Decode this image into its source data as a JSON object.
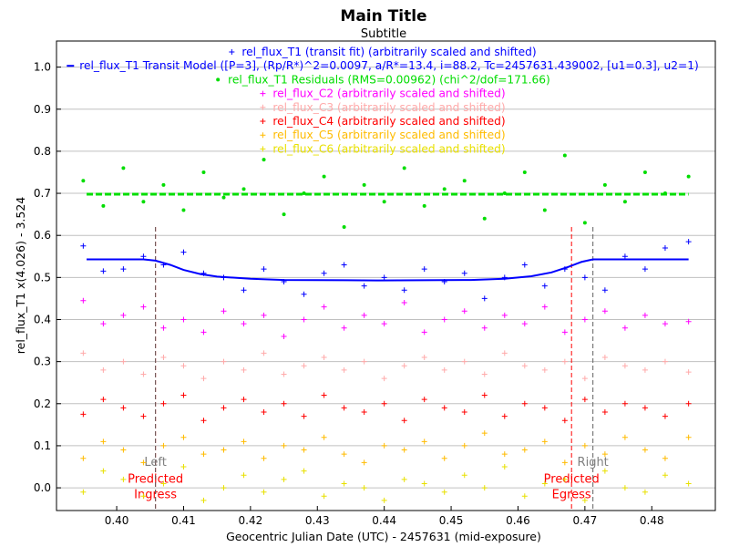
{
  "chart_data": {
    "type": "scatter",
    "title": "Main Title",
    "subtitle": "Subtitle",
    "xlabel": "Geocentric Julian Date (UTC) - 2457631 (mid-exposure)",
    "ylabel": "rel_flux_T1 x(4.026) - 3.524",
    "xlim": [
      0.391,
      0.4895
    ],
    "ylim": [
      -0.054,
      1.062
    ],
    "grid": true,
    "legend_position": "top-center",
    "xticks": [
      "0.40",
      "0.41",
      "0.42",
      "0.43",
      "0.44",
      "0.45",
      "0.46",
      "0.47",
      "0.48"
    ],
    "xtick_values": [
      0.4,
      0.41,
      0.42,
      0.43,
      0.44,
      0.45,
      0.46,
      0.47,
      0.48
    ],
    "yticks": [
      "0.0",
      "0.1",
      "0.2",
      "0.3",
      "0.4",
      "0.5",
      "0.6",
      "0.7",
      "0.8",
      "0.9",
      "1.0"
    ],
    "ytick_values": [
      0.0,
      0.1,
      0.2,
      0.3,
      0.4,
      0.5,
      0.6,
      0.7,
      0.8,
      0.9,
      1.0
    ],
    "x": [
      0.395,
      0.398,
      0.401,
      0.404,
      0.407,
      0.41,
      0.413,
      0.416,
      0.419,
      0.422,
      0.425,
      0.428,
      0.431,
      0.434,
      0.437,
      0.44,
      0.443,
      0.446,
      0.449,
      0.452,
      0.455,
      0.458,
      0.461,
      0.464,
      0.467,
      0.47,
      0.473,
      0.476,
      0.479,
      0.482,
      0.4855
    ],
    "series": [
      {
        "name": "rel_flux_T1 (transit fit) (arbitrarily scaled and shifted)",
        "marker": "+",
        "color": "#0000ff",
        "values": [
          0.575,
          0.515,
          0.52,
          0.55,
          0.53,
          0.56,
          0.51,
          0.5,
          0.47,
          0.52,
          0.49,
          0.46,
          0.51,
          0.53,
          0.48,
          0.5,
          0.47,
          0.52,
          0.49,
          0.51,
          0.45,
          0.5,
          0.53,
          0.48,
          0.52,
          0.5,
          0.47,
          0.55,
          0.52,
          0.57,
          0.585
        ]
      },
      {
        "name": "rel_flux_T1 Residuals (RMS=0.00962) (chi^2/dof=171.66)",
        "marker": "dot",
        "color": "#00dd00",
        "values": [
          0.73,
          0.67,
          0.76,
          0.68,
          0.72,
          0.66,
          0.75,
          0.69,
          0.71,
          0.78,
          0.65,
          0.7,
          0.74,
          0.62,
          0.72,
          0.68,
          0.76,
          0.67,
          0.71,
          0.73,
          0.64,
          0.7,
          0.75,
          0.66,
          0.79,
          0.63,
          0.72,
          0.68,
          0.75,
          0.7,
          0.74
        ]
      },
      {
        "name": "rel_flux_C2 (arbitrarily scaled and shifted)",
        "marker": "+",
        "color": "#ff00ff",
        "values": [
          0.445,
          0.39,
          0.41,
          0.43,
          0.38,
          0.4,
          0.37,
          0.42,
          0.39,
          0.41,
          0.36,
          0.4,
          0.43,
          0.38,
          0.41,
          0.39,
          0.44,
          0.37,
          0.4,
          0.42,
          0.38,
          0.41,
          0.39,
          0.43,
          0.37,
          0.4,
          0.42,
          0.38,
          0.41,
          0.39,
          0.395
        ]
      },
      {
        "name": "rel_flux_C3 (arbitrarily scaled and shifted)",
        "marker": "+",
        "color": "#ffaaaa",
        "values": [
          0.32,
          0.28,
          0.3,
          0.27,
          0.31,
          0.29,
          0.26,
          0.3,
          0.28,
          0.32,
          0.27,
          0.29,
          0.31,
          0.28,
          0.3,
          0.26,
          0.29,
          0.31,
          0.28,
          0.3,
          0.27,
          0.32,
          0.29,
          0.28,
          0.3,
          0.26,
          0.31,
          0.29,
          0.28,
          0.3,
          0.275
        ]
      },
      {
        "name": "rel_flux_C4 (arbitrarily scaled and shifted)",
        "marker": "+",
        "color": "#ff0000",
        "values": [
          0.175,
          0.21,
          0.19,
          0.17,
          0.2,
          0.22,
          0.16,
          0.19,
          0.21,
          0.18,
          0.2,
          0.17,
          0.22,
          0.19,
          0.18,
          0.2,
          0.16,
          0.21,
          0.19,
          0.18,
          0.22,
          0.17,
          0.2,
          0.19,
          0.16,
          0.21,
          0.18,
          0.2,
          0.19,
          0.17,
          0.2
        ]
      },
      {
        "name": "rel_flux_C5 (arbitrarily scaled and shifted)",
        "marker": "+",
        "color": "#ffbb00",
        "values": [
          0.07,
          0.11,
          0.09,
          0.06,
          0.1,
          0.12,
          0.08,
          0.09,
          0.11,
          0.07,
          0.1,
          0.09,
          0.12,
          0.08,
          0.06,
          0.1,
          0.09,
          0.11,
          0.07,
          0.1,
          0.13,
          0.08,
          0.09,
          0.11,
          0.06,
          0.1,
          0.08,
          0.12,
          0.09,
          0.07,
          0.12
        ]
      },
      {
        "name": "rel_flux_C6 (arbitrarily scaled and shifted)",
        "marker": "+",
        "color": "#e8e000",
        "values": [
          -0.01,
          0.04,
          0.02,
          -0.02,
          0.01,
          0.05,
          -0.03,
          0.0,
          0.03,
          -0.01,
          0.02,
          0.04,
          -0.02,
          0.01,
          0.0,
          -0.03,
          0.02,
          0.01,
          -0.01,
          0.03,
          0.0,
          0.05,
          -0.02,
          0.01,
          0.02,
          -0.03,
          0.04,
          0.0,
          -0.01,
          0.03,
          0.01
        ]
      }
    ],
    "model": {
      "name": "rel_flux_T1 Transit Model ([P=3], (Rp/R*)^2=0.0097, a/R*=13.4, i=88.2, Tc=2457631.439002, [u1=0.3], u2=1)",
      "color": "#0000ff",
      "x": [
        0.3955,
        0.404,
        0.4058,
        0.408,
        0.41,
        0.4125,
        0.415,
        0.42,
        0.425,
        0.439,
        0.453,
        0.458,
        0.462,
        0.465,
        0.4675,
        0.4695,
        0.4712,
        0.4855
      ],
      "y": [
        0.543,
        0.543,
        0.54,
        0.53,
        0.518,
        0.508,
        0.502,
        0.497,
        0.494,
        0.493,
        0.494,
        0.497,
        0.503,
        0.512,
        0.525,
        0.537,
        0.543,
        0.543
      ]
    },
    "residual_fit": {
      "color": "#00dd00",
      "value": 0.698,
      "x_range": [
        0.3955,
        0.4855
      ]
    },
    "markers": [
      {
        "label_top": "Predicted",
        "label_bottom": "Ingress",
        "x": 0.4058,
        "color": "#ff0000"
      },
      {
        "label": "Left",
        "x": 0.4058,
        "color": "#808080"
      },
      {
        "label_top": "Predicted",
        "label_bottom": "Egress",
        "x": 0.468,
        "color": "#ff0000"
      },
      {
        "label": "Right",
        "x": 0.4712,
        "color": "#808080"
      }
    ]
  }
}
